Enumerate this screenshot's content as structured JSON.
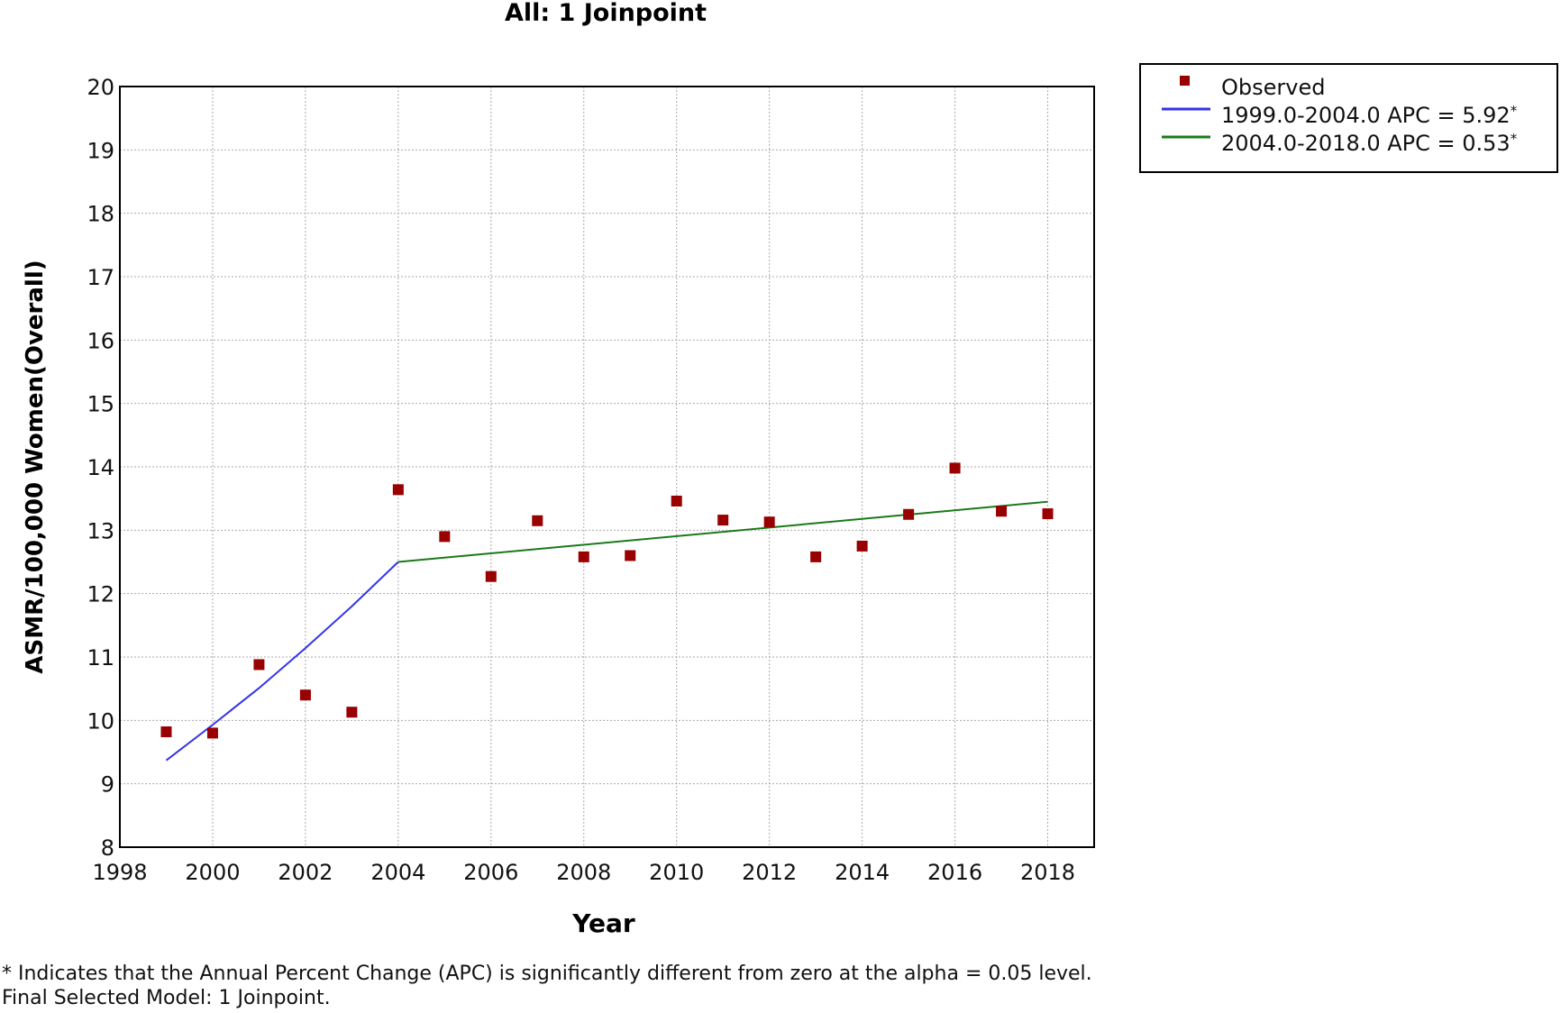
{
  "chart_data": {
    "type": "scatter",
    "title": "All: 1 Joinpoint",
    "xlabel": "Year",
    "ylabel": "ASMR/100,000 Women(Overall)",
    "xlim": [
      1998,
      2019
    ],
    "ylim": [
      8,
      20
    ],
    "xticks": [
      1998,
      2000,
      2002,
      2004,
      2006,
      2008,
      2010,
      2012,
      2014,
      2016,
      2018
    ],
    "yticks": [
      8,
      9,
      10,
      11,
      12,
      13,
      14,
      15,
      16,
      17,
      18,
      19,
      20
    ],
    "grid": true,
    "legend_position": "top-right, outside plot",
    "observed": {
      "name": "Observed",
      "color": "#990000",
      "x": [
        1999,
        2000,
        2001,
        2002,
        2003,
        2004,
        2005,
        2006,
        2007,
        2008,
        2009,
        2010,
        2011,
        2012,
        2013,
        2014,
        2015,
        2016,
        2017,
        2018
      ],
      "y": [
        9.82,
        9.8,
        10.88,
        10.4,
        10.13,
        13.64,
        12.9,
        12.27,
        13.15,
        12.58,
        12.6,
        13.46,
        13.16,
        13.13,
        12.58,
        12.75,
        13.25,
        13.98,
        13.3,
        13.26
      ]
    },
    "segments": [
      {
        "name": "1999.0-2004.0 APC  = 5.92",
        "name_sup": "*",
        "color": "#3333ee",
        "x": [
          1999,
          2000,
          2001,
          2002,
          2003,
          2004
        ],
        "y": [
          9.37,
          9.93,
          10.51,
          11.14,
          11.8,
          12.5
        ]
      },
      {
        "name": "2004.0-2018.0 APC  = 0.53",
        "name_sup": "*",
        "color": "#1a7a1a",
        "x": [
          2004,
          2018
        ],
        "y": [
          12.5,
          13.45
        ]
      }
    ]
  },
  "footnotes": {
    "line1": "* Indicates that the Annual Percent Change (APC) is significantly different from zero at the alpha = 0.05 level.",
    "line2": "Final Selected Model: 1 Joinpoint."
  }
}
